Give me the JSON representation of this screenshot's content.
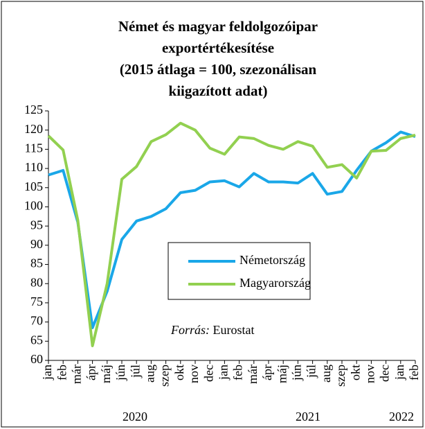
{
  "chart_data": {
    "type": "line",
    "title": [
      "Német és magyar feldolgozóipar",
      "exportértékesítése",
      "(2015 átlaga = 100, szezonálisan",
      "kiigazított adat)"
    ],
    "categories": [
      "jan",
      "feb",
      "már",
      "ápr",
      "máj",
      "jún",
      "júl",
      "aug",
      "szep",
      "okt",
      "nov",
      "dec",
      "jan",
      "feb",
      "már",
      "ápr",
      "máj",
      "jún",
      "júl",
      "aug",
      "szep",
      "okt",
      "nov",
      "dec",
      "jan",
      "feb"
    ],
    "year_labels": [
      "2020",
      "2021",
      "2022"
    ],
    "series": [
      {
        "name": "Németország",
        "color": "#1aa7e8",
        "values": [
          108.3,
          109.5,
          96,
          68.5,
          78,
          91.5,
          96.3,
          97.5,
          99.5,
          103.7,
          104.3,
          106.5,
          106.8,
          105.2,
          108.7,
          106.5,
          106.5,
          106.2,
          108.7,
          103.3,
          104,
          109.5,
          114.5,
          116.7,
          119.5,
          118.3
        ]
      },
      {
        "name": "Magyarország",
        "color": "#92d050",
        "values": [
          118.5,
          114.8,
          96.5,
          63.8,
          80,
          107.2,
          110.5,
          117,
          118.8,
          121.8,
          120,
          115.3,
          113.7,
          118.2,
          117.8,
          116,
          115,
          117,
          115.8,
          110.3,
          111,
          107.5,
          114.5,
          114.7,
          117.8,
          118.7
        ]
      }
    ],
    "source_label": "Forrás:",
    "source": "Eurostat",
    "ylim": [
      60,
      125
    ],
    "yticks": [
      60,
      65,
      70,
      75,
      80,
      85,
      90,
      95,
      100,
      105,
      110,
      115,
      120,
      125
    ]
  }
}
